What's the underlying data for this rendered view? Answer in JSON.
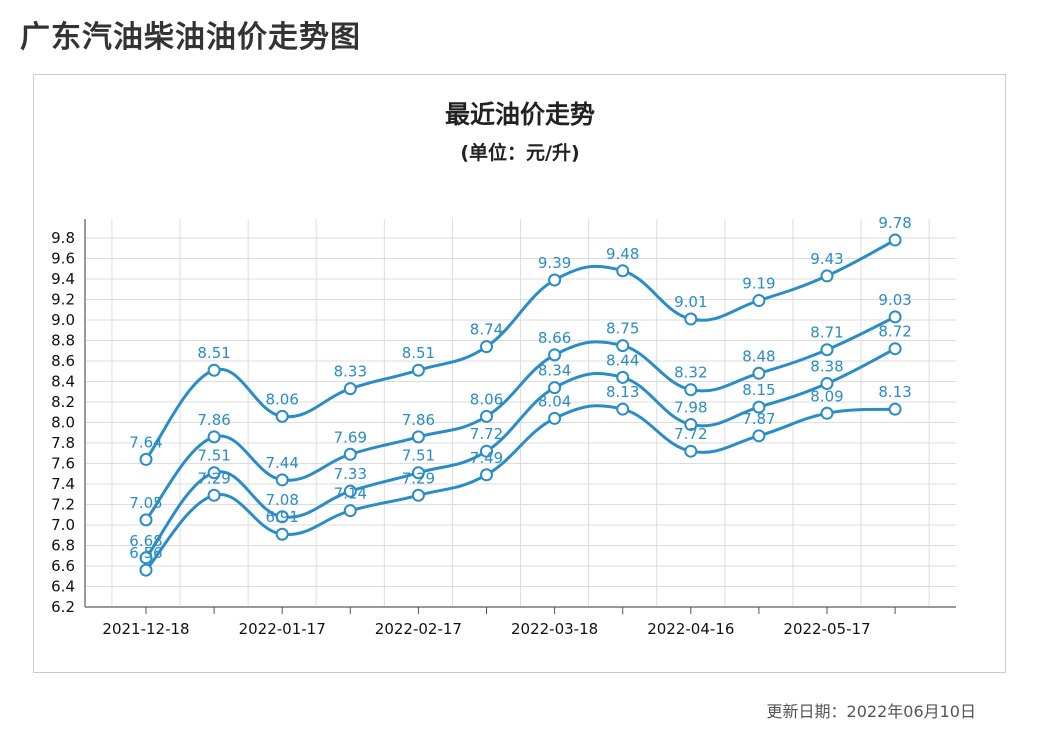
{
  "page": {
    "title": "广东汽油柴油油价走势图",
    "update_label": "更新日期：",
    "update_date": "2022年06月10日"
  },
  "chart_data": {
    "type": "line",
    "title": "最近油价走势",
    "subtitle": "(单位：元/升)",
    "xlabel": "",
    "ylabel": "",
    "ylim": [
      6.2,
      9.8
    ],
    "y_ticks": [
      "6.2",
      "6.4",
      "6.6",
      "6.8",
      "7.0",
      "7.2",
      "7.4",
      "7.6",
      "7.8",
      "8.0",
      "8.2",
      "8.4",
      "8.6",
      "8.8",
      "9.0",
      "9.2",
      "9.4",
      "9.6",
      "9.8"
    ],
    "x_tick_labels": [
      "2021-12-18",
      "",
      "2022-01-17",
      "",
      "2022-02-17",
      "",
      "2022-03-18",
      "",
      "2022-04-16",
      "",
      "2022-05-17",
      ""
    ],
    "grid": true,
    "line_color": "#2a8dc5",
    "series": [
      {
        "values": [
          7.64,
          8.51,
          8.06,
          8.33,
          8.51,
          8.74,
          9.39,
          9.48,
          9.01,
          9.19,
          9.43,
          9.78
        ],
        "labels": [
          "7.64",
          "8.51",
          "8.06",
          "8.33",
          "8.51",
          "8.74",
          "9.39",
          "9.48",
          "9.01",
          "9.19",
          "9.43",
          "9.78"
        ]
      },
      {
        "values": [
          7.05,
          7.86,
          7.44,
          7.69,
          7.86,
          8.06,
          8.66,
          8.75,
          8.32,
          8.48,
          8.71,
          9.03
        ],
        "labels": [
          "7.05",
          "7.86",
          "7.44",
          "7.69",
          "7.86",
          "8.06",
          "8.66",
          "8.75",
          "8.32",
          "8.48",
          "8.71",
          "9.03"
        ]
      },
      {
        "values": [
          6.68,
          7.51,
          7.08,
          7.33,
          7.51,
          7.72,
          8.34,
          8.44,
          7.98,
          8.15,
          8.38,
          8.72
        ],
        "labels": [
          "6.68",
          "7.51",
          "7.08",
          "7.33",
          "7.51",
          "7.72",
          "8.34",
          "8.44",
          "7.98",
          "8.15",
          "8.38",
          "8.72"
        ]
      },
      {
        "values": [
          6.56,
          7.29,
          6.91,
          7.14,
          7.29,
          7.49,
          8.04,
          8.13,
          7.72,
          7.87,
          8.09,
          8.13
        ],
        "labels": [
          "6.56",
          "7.29",
          "6.91",
          "7.14",
          "7.29",
          "7.49",
          "8.04",
          "8.13",
          "7.72",
          "7.87",
          "8.09",
          "8.13"
        ]
      }
    ]
  }
}
